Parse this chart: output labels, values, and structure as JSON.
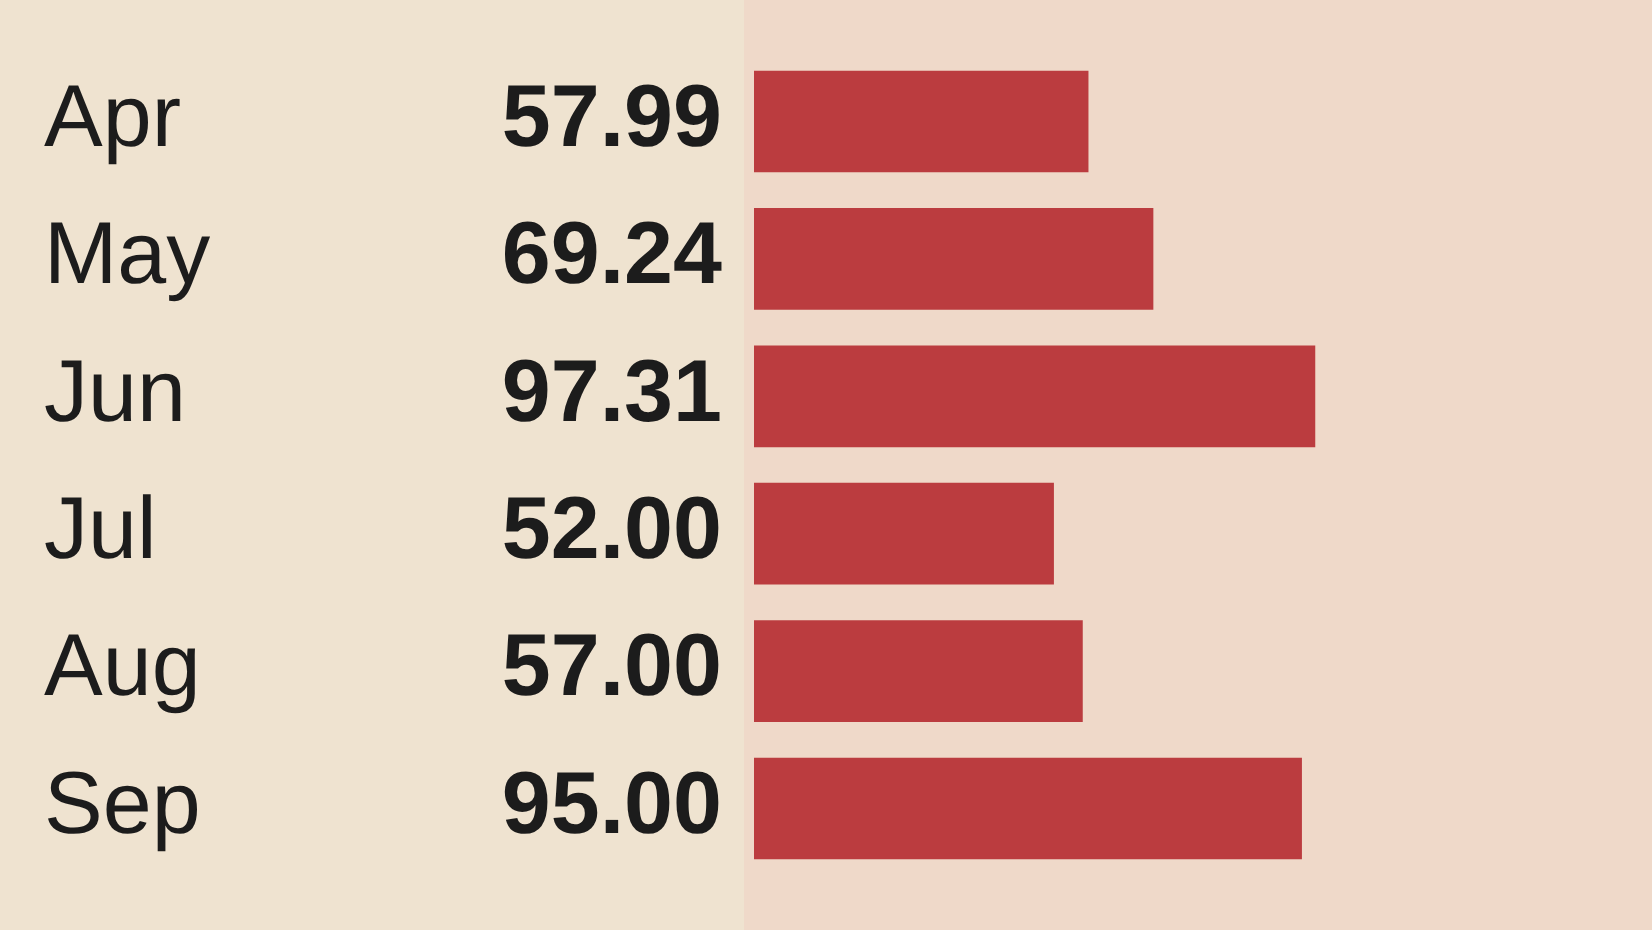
{
  "chart_data": {
    "type": "bar",
    "orientation": "horizontal",
    "categories": [
      "Apr",
      "May",
      "Jun",
      "Jul",
      "Aug",
      "Sep"
    ],
    "values": [
      57.99,
      69.24,
      97.31,
      52.0,
      57.0,
      95.0
    ],
    "value_labels": [
      "57.99",
      "69.24",
      "97.31",
      "52.00",
      "57.00",
      "95.00"
    ],
    "color": "#bb3c3f"
  }
}
